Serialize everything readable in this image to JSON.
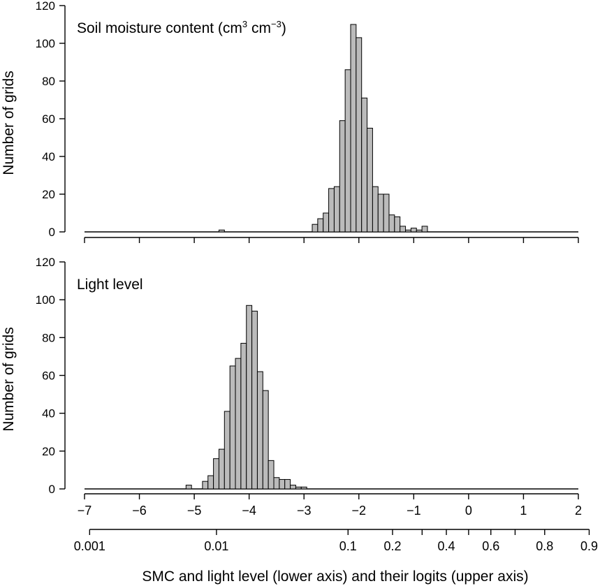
{
  "chart_data": [
    {
      "type": "bar",
      "title": "Soil moisture content (cm",
      "title_sup1": "3",
      "title_mid": " cm",
      "title_sup2": "−3",
      "title_end": ")",
      "ylabel": "Number of grids",
      "ylim": [
        0,
        120
      ],
      "yticks": [
        0,
        20,
        40,
        60,
        80,
        100,
        120
      ],
      "bin_start": -2.85,
      "bin_width": 0.1,
      "values": [
        4,
        7,
        10,
        23,
        24,
        59,
        86,
        110,
        103,
        71,
        55,
        24,
        20,
        20,
        9,
        8,
        3,
        1,
        2,
        1,
        3
      ],
      "extra_bins": [
        {
          "start": -4.55,
          "value": 1
        }
      ],
      "bar_color": "#bbbbbb"
    },
    {
      "type": "bar",
      "title": "Light level",
      "ylabel": "Number of grids",
      "ylim": [
        0,
        120
      ],
      "yticks": [
        0,
        20,
        40,
        60,
        80,
        100,
        120
      ],
      "bin_start": -4.85,
      "bin_width": 0.1,
      "values": [
        4,
        7,
        16,
        21,
        41,
        65,
        69,
        77,
        97,
        94,
        62,
        52,
        15,
        6,
        5,
        5,
        2,
        1,
        1
      ],
      "extra_bins": [
        {
          "start": -5.15,
          "value": 2
        }
      ],
      "bar_color": "#bbbbbb"
    }
  ],
  "shared_axes": {
    "upper_axis": {
      "label": "logits",
      "range": [
        -7,
        2
      ],
      "ticks": [
        "−7",
        "−6",
        "−5",
        "−4",
        "−3",
        "−2",
        "−1",
        "0",
        "1",
        "2"
      ],
      "tick_values": [
        -7,
        -6,
        -5,
        -4,
        -3,
        -2,
        -1,
        0,
        1,
        2
      ]
    },
    "lower_axis": {
      "label": "SMC and light level",
      "scale": "logit",
      "labeled_ticks": [
        "0.001",
        "0.01",
        "0.1",
        "0.2",
        "0.4",
        "0.6",
        "0.8",
        "0.9"
      ],
      "labeled_values": [
        0.001,
        0.01,
        0.1,
        0.2,
        0.4,
        0.6,
        0.8,
        0.9
      ],
      "minor_values": [
        0.3,
        0.5,
        0.7
      ]
    },
    "xlabel": "SMC and light level (lower axis) and their logits (upper axis)"
  }
}
